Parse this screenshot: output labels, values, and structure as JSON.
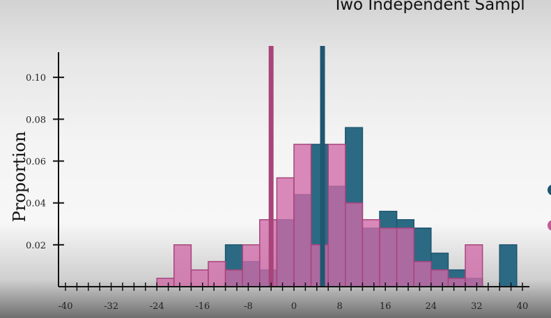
{
  "chart_data": {
    "type": "bar",
    "title": "Two Independent Sampl",
    "xlabel": "",
    "ylabel": "Proportion",
    "xlim": [
      -40,
      40
    ],
    "ylim": [
      0,
      0.115
    ],
    "bin_width": 3,
    "x_ticks": [
      "-40",
      "-32",
      "-24",
      "-16",
      "-8",
      "0",
      "8",
      "16",
      "24",
      "32",
      "40"
    ],
    "y_ticks": [
      "0.02",
      "0.04",
      "0.06",
      "0.08",
      "0.10"
    ],
    "series": [
      {
        "color": "#1f5670",
        "fill": "#2c6a84",
        "bins": [
          {
            "x0": -12,
            "y": 0.02
          },
          {
            "x0": -9,
            "y": 0.012
          },
          {
            "x0": -6,
            "y": 0.008
          },
          {
            "x0": -3,
            "y": 0.032
          },
          {
            "x0": 0,
            "y": 0.044
          },
          {
            "x0": 3,
            "y": 0.068
          },
          {
            "x0": 6,
            "y": 0.048
          },
          {
            "x0": 9,
            "y": 0.076
          },
          {
            "x0": 12,
            "y": 0.028
          },
          {
            "x0": 15,
            "y": 0.036
          },
          {
            "x0": 18,
            "y": 0.032
          },
          {
            "x0": 21,
            "y": 0.028
          },
          {
            "x0": 24,
            "y": 0.016
          },
          {
            "x0": 27,
            "y": 0.008
          },
          {
            "x0": 30,
            "y": 0.004
          },
          {
            "x0": 36,
            "y": 0.02
          }
        ],
        "mean_x": 5
      },
      {
        "color": "#a8447a",
        "fill": "#d06aa8",
        "bins": [
          {
            "x0": -24,
            "y": 0.004
          },
          {
            "x0": -21,
            "y": 0.02
          },
          {
            "x0": -18,
            "y": 0.008
          },
          {
            "x0": -15,
            "y": 0.012
          },
          {
            "x0": -12,
            "y": 0.008
          },
          {
            "x0": -9,
            "y": 0.02
          },
          {
            "x0": -6,
            "y": 0.032
          },
          {
            "x0": -3,
            "y": 0.052
          },
          {
            "x0": 0,
            "y": 0.068
          },
          {
            "x0": 3,
            "y": 0.02
          },
          {
            "x0": 6,
            "y": 0.068
          },
          {
            "x0": 9,
            "y": 0.04
          },
          {
            "x0": 12,
            "y": 0.032
          },
          {
            "x0": 15,
            "y": 0.028
          },
          {
            "x0": 18,
            "y": 0.028
          },
          {
            "x0": 21,
            "y": 0.012
          },
          {
            "x0": 24,
            "y": 0.008
          },
          {
            "x0": 27,
            "y": 0.004
          },
          {
            "x0": 30,
            "y": 0.02
          }
        ],
        "mean_x": -4
      }
    ],
    "legend": [
      {
        "color": "#1f5670"
      },
      {
        "color": "#c45a98"
      }
    ]
  }
}
